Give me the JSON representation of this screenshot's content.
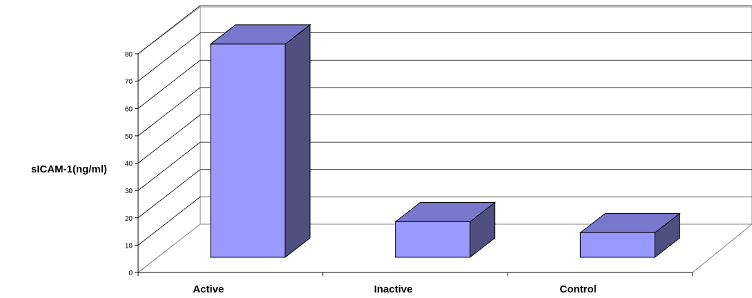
{
  "chart_data": {
    "type": "bar",
    "categories": [
      "Active",
      "Inactive",
      "Control"
    ],
    "values": [
      78,
      13,
      9
    ],
    "ylabel": "sICAM-1(ng/ml)",
    "xlabel": "",
    "title": "",
    "ylim": [
      0,
      80
    ],
    "yticks": [
      0,
      10,
      20,
      30,
      40,
      50,
      60,
      70,
      80
    ],
    "grid": true,
    "legend": "none",
    "colors": {
      "bar_front": "#9999ff",
      "bar_top": "#7777cc",
      "bar_side": "#4f4f80",
      "wall": "#ffffff",
      "grid": "#000000"
    }
  }
}
